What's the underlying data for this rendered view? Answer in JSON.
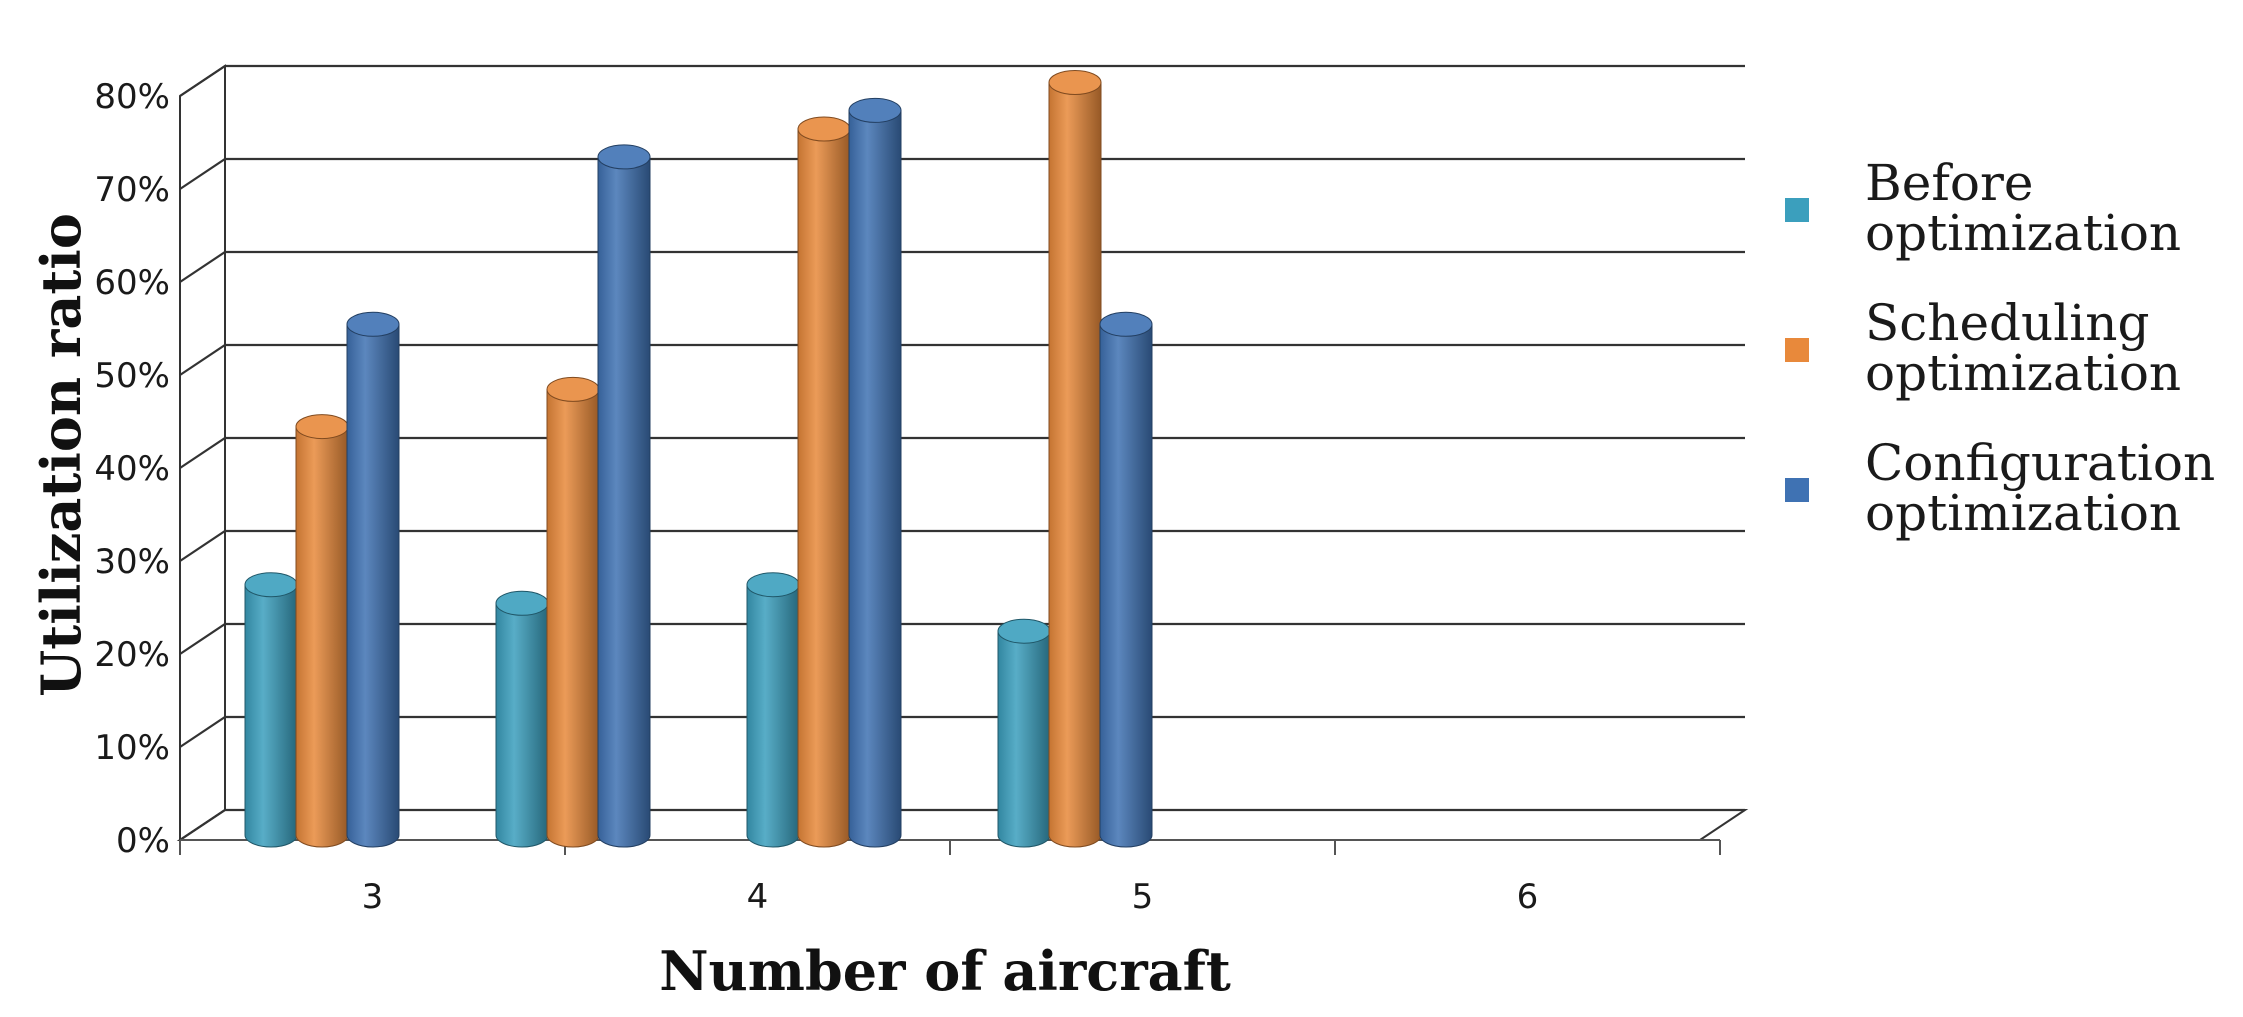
{
  "chart_data": {
    "type": "bar",
    "title": "",
    "xlabel": "Number of aircraft",
    "ylabel": "Utilization ratio",
    "categories": [
      "3",
      "4",
      "5",
      "6"
    ],
    "ylim": [
      0,
      80
    ],
    "yticks": [
      "0%",
      "10%",
      "20%",
      "30%",
      "40%",
      "50%",
      "60%",
      "70%",
      "80%"
    ],
    "grid": true,
    "legend_position": "right",
    "series": [
      {
        "name": "Before optimization",
        "legend_lines": [
          "Before",
          "optimization"
        ],
        "color": "#3b9fbd",
        "values": [
          26,
          24,
          26,
          21
        ]
      },
      {
        "name": "Scheduling optimization",
        "legend_lines": [
          "Scheduling",
          "optimization"
        ],
        "color": "#e8893b",
        "values": [
          43,
          47,
          75,
          80
        ]
      },
      {
        "name": "Configuration optimization",
        "legend_lines": [
          "Configuration",
          "optimization"
        ],
        "color": "#3f72b3",
        "values": [
          54,
          72,
          77,
          54
        ]
      }
    ]
  }
}
